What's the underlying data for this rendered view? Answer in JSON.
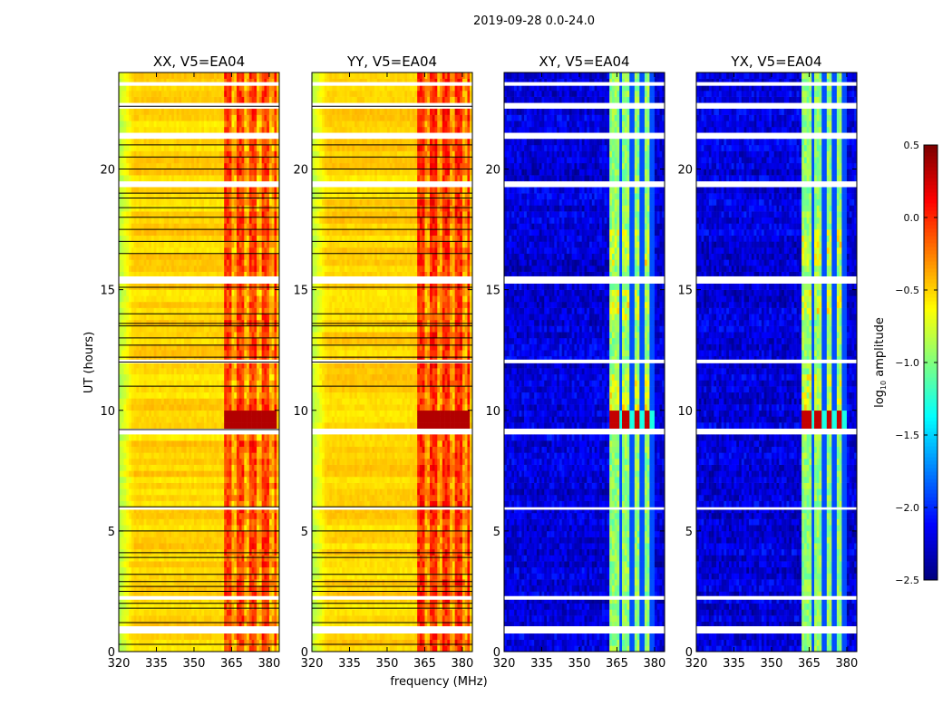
{
  "chart_data": {
    "type": "heatmap",
    "title": "2019-09-28 0.0-24.0",
    "xlabel": "frequency (MHz)",
    "ylabel": "UT (hours)",
    "xlim": [
      320,
      384
    ],
    "ylim": [
      0,
      24
    ],
    "xticks": [
      320,
      335,
      350,
      365,
      380
    ],
    "yticks": [
      0,
      5,
      10,
      15,
      20
    ],
    "colorbar": {
      "label": "log10 amplitude",
      "label_main": "log",
      "label_sub": "10",
      "label_rest": " amplitude",
      "range": [
        -2.5,
        0.5
      ],
      "ticks": [
        "0.5",
        "0.0",
        "−0.5",
        "−1.0",
        "−1.5",
        "−2.0",
        "−2.5"
      ],
      "tick_values": [
        0.5,
        0,
        -0.5,
        -1,
        -1.5,
        -2,
        -2.5
      ],
      "colormap": "jet"
    },
    "flagged_hours": [
      [
        0.85,
        1.05
      ],
      [
        2.15,
        2.3
      ],
      [
        5.88,
        5.98
      ],
      [
        9.08,
        9.2
      ],
      [
        11.95,
        12.1
      ],
      [
        15.3,
        15.55
      ],
      [
        19.25,
        19.4
      ],
      [
        21.35,
        21.5
      ],
      [
        22.55,
        22.7
      ],
      [
        23.45,
        23.6
      ]
    ],
    "panels": [
      {
        "title": "XX, V5=EA04",
        "base": -0.5,
        "edge": -0.85,
        "band": [
          362,
          383
        ],
        "band_level": -0.05,
        "dark_lines": [
          0.3,
          1.2,
          1.8,
          2.0,
          2.5,
          2.7,
          2.9,
          3.2,
          3.9,
          4.1,
          5.0,
          6.0,
          9.2,
          11.0,
          12.0,
          12.2,
          12.7,
          13.0,
          13.5,
          13.6,
          14.0,
          15.1,
          16.5,
          17.0,
          17.5,
          18.0,
          18.4,
          18.8,
          19.0,
          20.0,
          20.5,
          21.0,
          22.6
        ]
      },
      {
        "title": "YY, V5=EA04",
        "base": -0.5,
        "edge": -0.85,
        "band": [
          362,
          383
        ],
        "band_level": 0.0,
        "dark_lines": [
          0.3,
          1.2,
          1.8,
          2.0,
          2.5,
          2.7,
          2.9,
          3.2,
          3.9,
          4.1,
          5.0,
          6.0,
          11.0,
          12.0,
          12.2,
          12.7,
          13.0,
          13.5,
          13.6,
          14.0,
          15.1,
          16.5,
          17.0,
          17.5,
          18.0,
          18.4,
          18.8,
          19.0,
          20.0,
          20.5,
          21.0,
          22.6
        ]
      },
      {
        "title": "XY, V5=EA04",
        "base": -2.3,
        "edge": -2.3,
        "band": [
          362,
          380
        ],
        "band_level": -0.95,
        "dark_lines": []
      },
      {
        "title": "YX, V5=EA04",
        "base": -2.3,
        "edge": -2.3,
        "band": [
          362,
          380
        ],
        "band_level": -0.95,
        "dark_lines": []
      }
    ],
    "strong_rfi_hours": [
      9.0,
      10.0
    ]
  }
}
